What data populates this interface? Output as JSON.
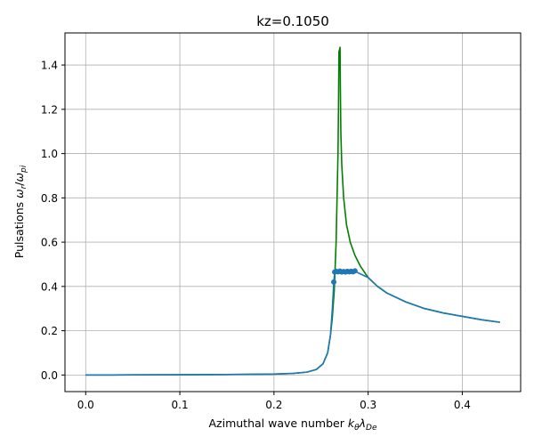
{
  "chart_data": {
    "type": "line",
    "title": "kz=0.1050",
    "xlabel": "Azimuthal wave number",
    "xlabel_math": "kθλDe",
    "ylabel": "Pulsations",
    "ylabel_math": "ωr/ωpi",
    "xlim": [
      -0.022,
      0.462
    ],
    "ylim": [
      -0.075,
      1.545
    ],
    "grid": true,
    "x_ticks": [
      0.0,
      0.1,
      0.2,
      0.3,
      0.4
    ],
    "x_tick_labels": [
      "0.0",
      "0.1",
      "0.2",
      "0.3",
      "0.4"
    ],
    "y_ticks": [
      0.0,
      0.2,
      0.4,
      0.6,
      0.8,
      1.0,
      1.2,
      1.4
    ],
    "y_tick_labels": [
      "0.0",
      "0.2",
      "0.4",
      "0.6",
      "0.8",
      "1.0",
      "1.2",
      "1.4"
    ],
    "series": [
      {
        "color": "#008000",
        "style": "line",
        "points": [
          [
            0.0,
            0.0
          ],
          [
            0.05,
            0.0005
          ],
          [
            0.1,
            0.001
          ],
          [
            0.15,
            0.002
          ],
          [
            0.2,
            0.004
          ],
          [
            0.22,
            0.007
          ],
          [
            0.235,
            0.013
          ],
          [
            0.245,
            0.025
          ],
          [
            0.252,
            0.05
          ],
          [
            0.257,
            0.1
          ],
          [
            0.26,
            0.18
          ],
          [
            0.262,
            0.26
          ],
          [
            0.264,
            0.38
          ],
          [
            0.266,
            0.6
          ],
          [
            0.268,
            1.0
          ],
          [
            0.2685,
            1.2
          ],
          [
            0.269,
            1.46
          ],
          [
            0.2697,
            1.47
          ],
          [
            0.2702,
            1.48
          ],
          [
            0.2705,
            1.3
          ],
          [
            0.271,
            1.1
          ],
          [
            0.272,
            0.95
          ],
          [
            0.274,
            0.8
          ],
          [
            0.277,
            0.68
          ],
          [
            0.281,
            0.6
          ],
          [
            0.286,
            0.54
          ],
          [
            0.292,
            0.49
          ],
          [
            0.3,
            0.44
          ],
          [
            0.31,
            0.4
          ],
          [
            0.32,
            0.37
          ],
          [
            0.34,
            0.33
          ],
          [
            0.36,
            0.3
          ],
          [
            0.38,
            0.28
          ],
          [
            0.4,
            0.265
          ],
          [
            0.42,
            0.25
          ],
          [
            0.44,
            0.238
          ]
        ]
      },
      {
        "color": "#1f77b4",
        "style": "line-markers",
        "points": [
          [
            0.0,
            0.0
          ],
          [
            0.05,
            0.0005
          ],
          [
            0.1,
            0.001
          ],
          [
            0.15,
            0.002
          ],
          [
            0.2,
            0.004
          ],
          [
            0.22,
            0.007
          ],
          [
            0.235,
            0.013
          ],
          [
            0.245,
            0.025
          ],
          [
            0.252,
            0.05
          ],
          [
            0.257,
            0.1
          ],
          [
            0.26,
            0.18
          ],
          [
            0.262,
            0.3
          ],
          [
            0.2635,
            0.42
          ],
          [
            0.2645,
            0.465
          ],
          [
            0.266,
            0.468
          ],
          [
            0.268,
            0.466
          ],
          [
            0.27,
            0.469
          ],
          [
            0.272,
            0.465
          ],
          [
            0.274,
            0.467
          ],
          [
            0.276,
            0.465
          ],
          [
            0.278,
            0.468
          ],
          [
            0.28,
            0.466
          ],
          [
            0.282,
            0.468
          ],
          [
            0.284,
            0.466
          ],
          [
            0.286,
            0.47
          ],
          [
            0.29,
            0.46
          ],
          [
            0.295,
            0.45
          ],
          [
            0.3,
            0.44
          ],
          [
            0.31,
            0.4
          ],
          [
            0.32,
            0.37
          ],
          [
            0.34,
            0.33
          ],
          [
            0.36,
            0.3
          ],
          [
            0.38,
            0.28
          ],
          [
            0.4,
            0.265
          ],
          [
            0.42,
            0.25
          ],
          [
            0.44,
            0.238
          ]
        ],
        "marker_range": [
          0.263,
          0.287
        ]
      }
    ]
  }
}
